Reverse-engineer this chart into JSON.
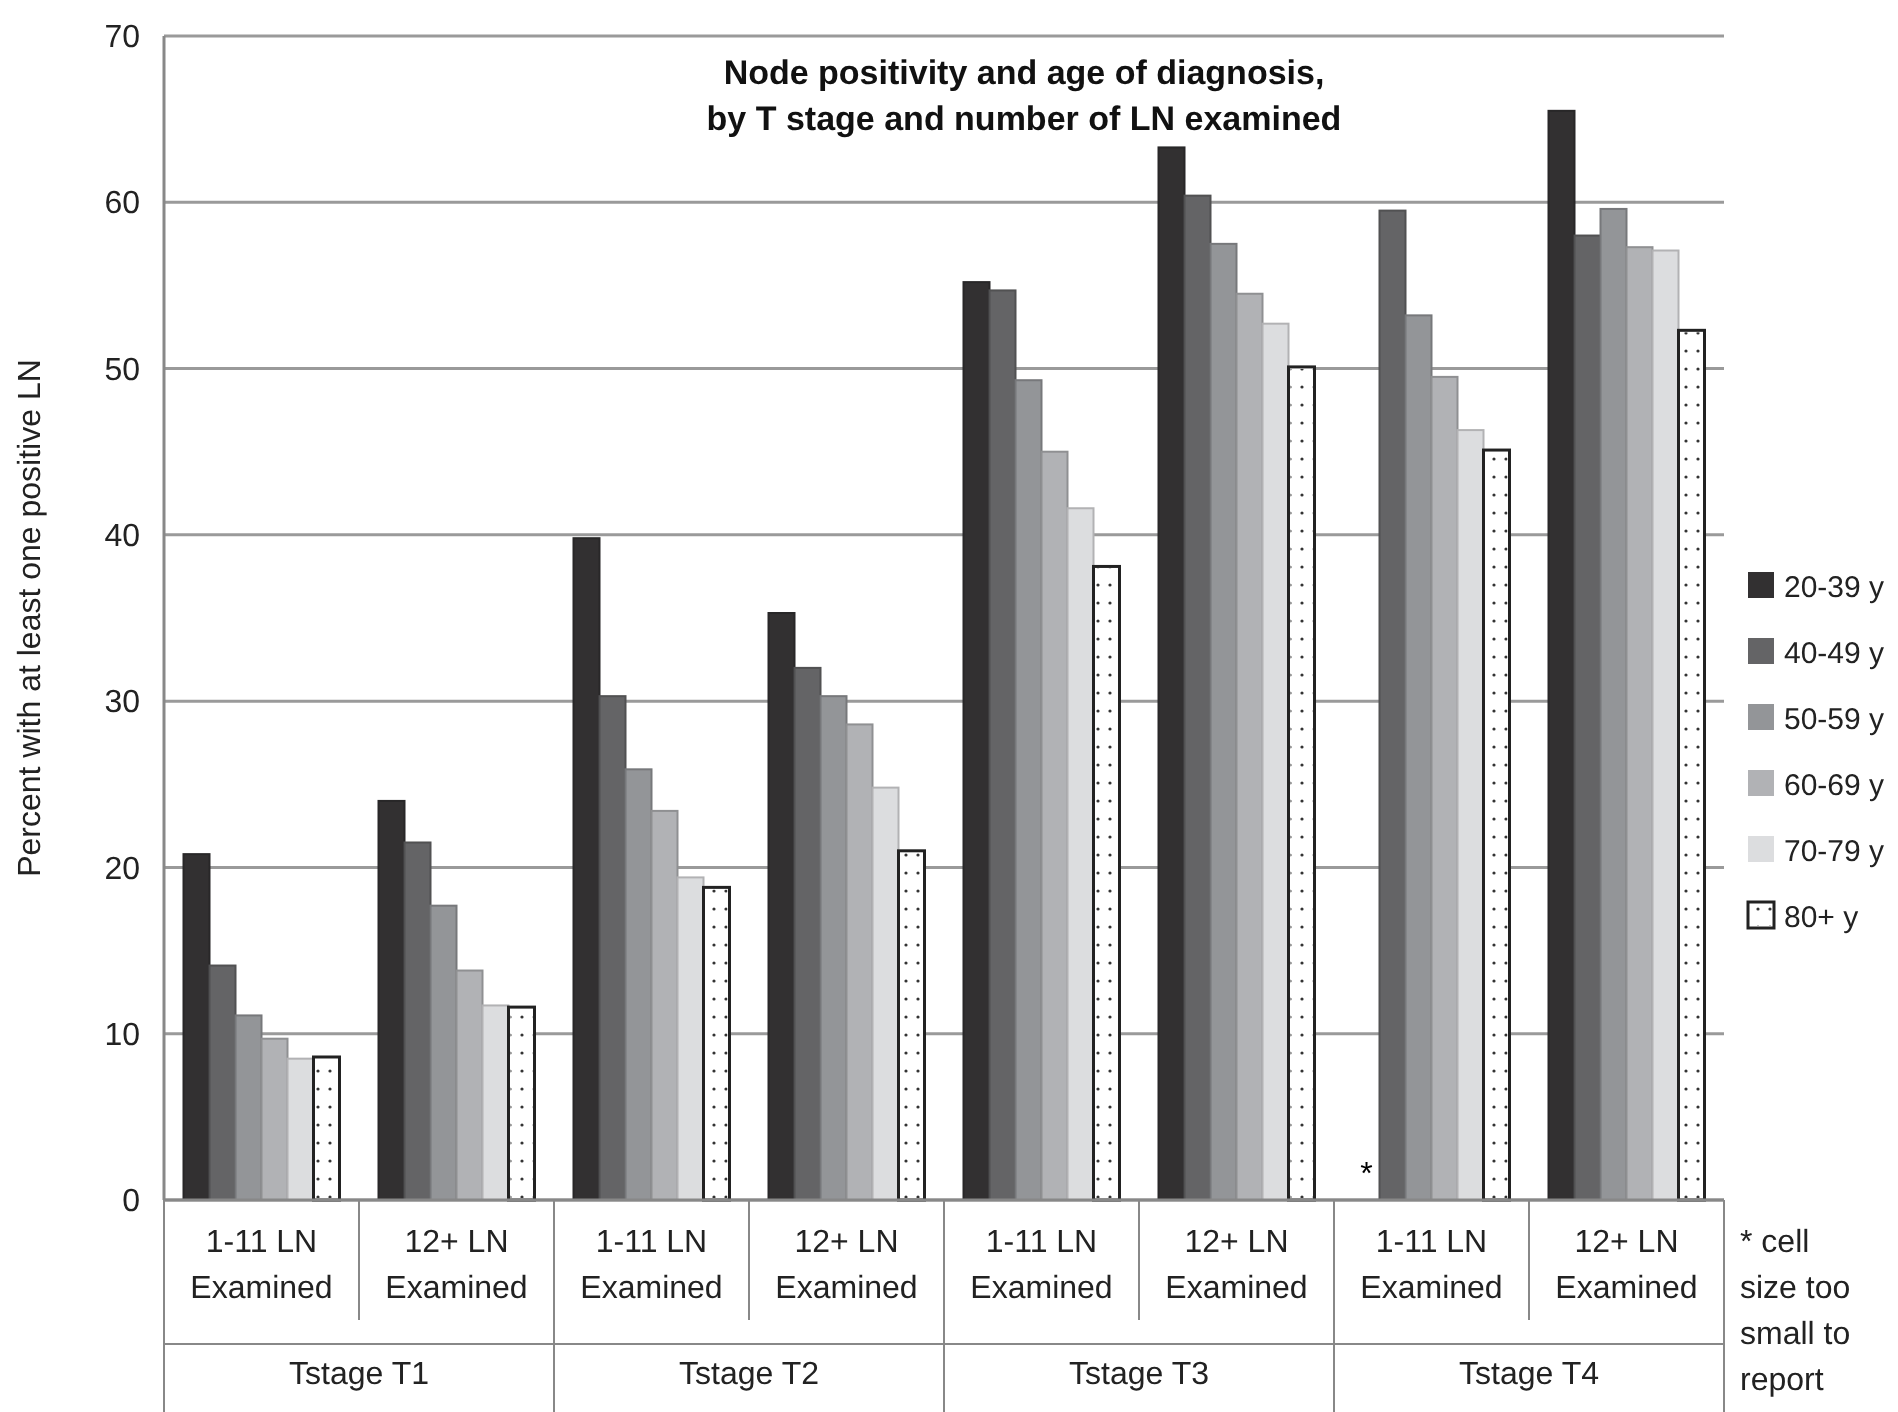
{
  "chart_data": {
    "type": "bar",
    "title": "Node positivity and age of diagnosis,\nby T stage and number of LN examined",
    "ylabel": "Percent with at least one positive LN",
    "categories": [
      "1-11 LN Examined",
      "12+  LN Examined",
      "1-11 LN Examined",
      "12+  LN Examined",
      "1-11 LN Examined",
      "12+  LN Examined",
      "1-11 LN Examined",
      "12+  LN Examined"
    ],
    "series": [
      {
        "name": "20-39 y",
        "color": "#323031",
        "values": [
          20.8,
          24.0,
          39.8,
          35.3,
          55.2,
          63.3,
          null,
          65.5
        ],
        "value_labels": [
          null,
          null,
          null,
          null,
          null,
          null,
          "*",
          null
        ]
      },
      {
        "name": "40-49 y",
        "color": "#646466",
        "values": [
          14.1,
          21.5,
          30.3,
          32.0,
          54.7,
          60.4,
          59.5,
          58.0
        ]
      },
      {
        "name": "50-59 y",
        "color": "#939598",
        "values": [
          11.1,
          17.7,
          25.9,
          30.3,
          49.3,
          57.5,
          53.2,
          59.6
        ]
      },
      {
        "name": "60-69 y",
        "color": "#b1b2b5",
        "values": [
          9.7,
          13.8,
          23.4,
          28.6,
          45.0,
          54.5,
          49.5,
          57.3
        ]
      },
      {
        "name": "70-79 y",
        "color": "#dcdddf",
        "values": [
          8.5,
          11.7,
          19.4,
          24.8,
          41.6,
          52.7,
          46.3,
          57.1
        ]
      },
      {
        "name": "80+ y",
        "color": "#ffffff",
        "values": [
          8.6,
          11.6,
          18.8,
          21.0,
          38.1,
          50.1,
          45.1,
          52.3
        ]
      }
    ],
    "ylim": [
      0,
      70
    ],
    "yticks": [
      0,
      10,
      20,
      30,
      40,
      50,
      60,
      70
    ],
    "grid": "y",
    "legend": "right",
    "annotations": [
      "Tstage T1",
      "Tstage T2",
      "Tstage T3",
      "Tstage T4",
      "* cell size too small to report"
    ]
  }
}
